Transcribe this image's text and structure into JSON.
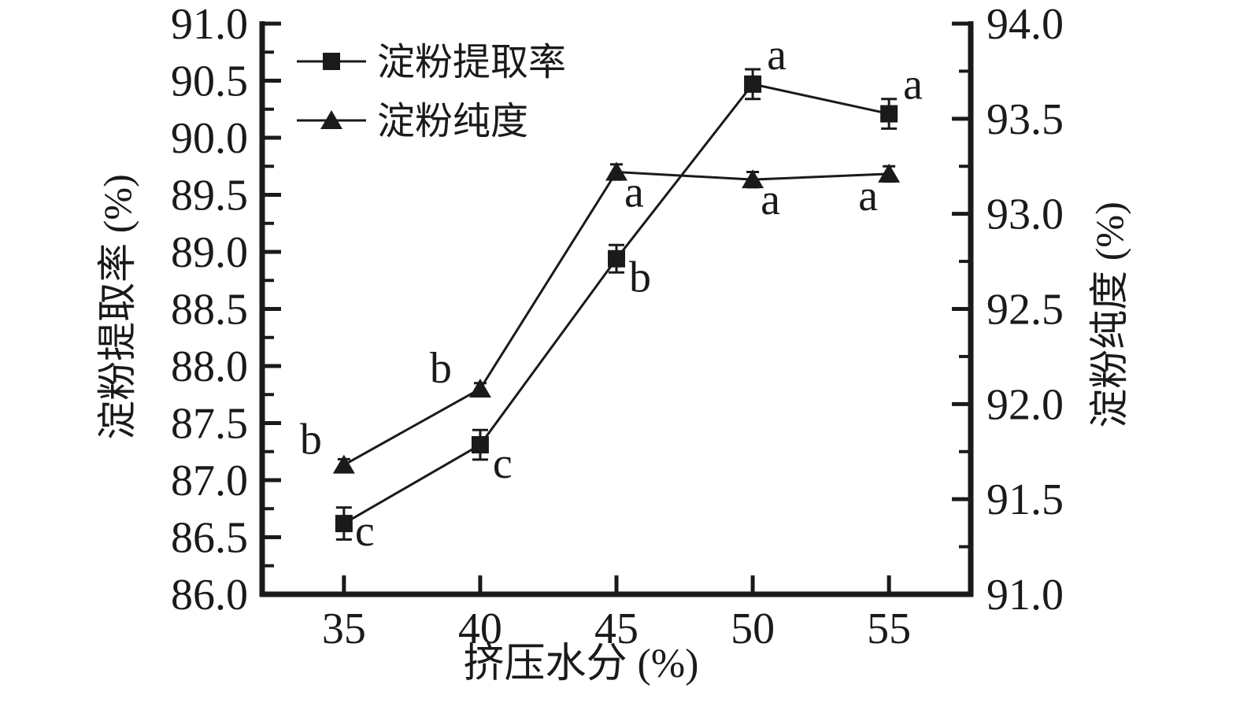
{
  "chart_data": {
    "type": "line",
    "x": [
      35,
      40,
      45,
      50,
      55
    ],
    "x_tick_labels": [
      "35",
      "40",
      "45",
      "50",
      "55"
    ],
    "xlabel": "挤压水分 (%)",
    "xlim": [
      32,
      58
    ],
    "left_axis": {
      "label": "淀粉提取率 (%)",
      "lim": [
        86.0,
        91.0
      ],
      "tick_labels": [
        "86.0",
        "86.5",
        "87.0",
        "87.5",
        "88.0",
        "88.5",
        "89.0",
        "89.5",
        "90.0",
        "90.5",
        "91.0"
      ],
      "minor_step": 0.25
    },
    "right_axis": {
      "label": "淀粉纯度 (%)",
      "lim": [
        91.0,
        94.0
      ],
      "tick_labels": [
        "91.0",
        "91.5",
        "92.0",
        "92.5",
        "93.0",
        "93.5",
        "94.0"
      ],
      "minor_step": 0.25
    },
    "series": [
      {
        "name": "淀粉提取率",
        "axis": "left",
        "marker": "square",
        "values": [
          86.62,
          87.31,
          88.94,
          90.47,
          90.21
        ],
        "errors": [
          0.14,
          0.13,
          0.12,
          0.13,
          0.13
        ],
        "point_labels": [
          "c",
          "c",
          "b",
          "a",
          "a"
        ],
        "label_placements": [
          "right",
          "below-right",
          "below-right",
          "above-right",
          "above-right"
        ]
      },
      {
        "name": "淀粉纯度",
        "axis": "right",
        "marker": "triangle",
        "values": [
          91.68,
          92.08,
          93.22,
          93.18,
          93.21
        ],
        "errors": [
          0.03,
          0.03,
          0.04,
          0.04,
          0.04
        ],
        "point_labels": [
          "b",
          "b",
          "a",
          "a",
          "a"
        ],
        "label_placements": [
          "above-left-close",
          "above-left",
          "below-right-far",
          "below-right-far",
          "below"
        ]
      }
    ],
    "legend": {
      "position": "top-left",
      "entries": [
        {
          "label": "淀粉提取率",
          "marker": "square"
        },
        {
          "label": "淀粉纯度",
          "marker": "triangle"
        }
      ]
    },
    "grid": false,
    "colors": {
      "line": "#1a1a1a",
      "background": "#ffffff"
    }
  }
}
